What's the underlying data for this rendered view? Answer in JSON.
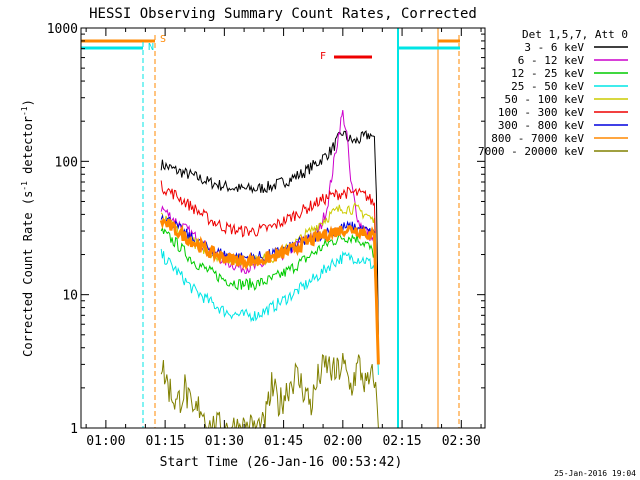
{
  "chart_data": {
    "type": "line",
    "title": "HESSI Observing Summary Count Rates, Corrected",
    "xlabel": "Start Time (26-Jan-16 00:53:42)",
    "ylabel": "Corrected Count Rate (s⁻¹ detector⁻¹)",
    "ylabel_main": "Corrected Count Rate (s",
    "ylabel_sup1": "-1",
    "ylabel_mid": " detector",
    "ylabel_sup2": "-1",
    "ylabel_end": ")",
    "timestamp": "25-Jan-2016 19:04",
    "y_scale": "log",
    "ylim": [
      1,
      1000
    ],
    "xlim_minutes": [
      53.7,
      156
    ],
    "x_ticks": [
      {
        "minutes": 60,
        "label": "01:00"
      },
      {
        "minutes": 75,
        "label": "01:15"
      },
      {
        "minutes": 90,
        "label": "01:30"
      },
      {
        "minutes": 105,
        "label": "01:45"
      },
      {
        "minutes": 120,
        "label": "02:00"
      },
      {
        "minutes": 135,
        "label": "02:15"
      },
      {
        "minutes": 150,
        "label": "02:30"
      }
    ],
    "y_ticks": [
      {
        "value": 1,
        "label": "1"
      },
      {
        "value": 10,
        "label": "10"
      },
      {
        "value": 100,
        "label": "100"
      },
      {
        "value": 1000,
        "label": "1000"
      }
    ],
    "legend_header": "Det 1,5,7, Att 0",
    "legend_placement": "right",
    "series": [
      {
        "name": "3 - 6 keV",
        "color": "#000000",
        "points": [
          [
            74,
            95
          ],
          [
            78,
            85
          ],
          [
            82,
            78
          ],
          [
            86,
            70
          ],
          [
            90,
            65
          ],
          [
            94,
            62
          ],
          [
            98,
            62
          ],
          [
            102,
            65
          ],
          [
            106,
            72
          ],
          [
            110,
            82
          ],
          [
            114,
            100
          ],
          [
            117,
            120
          ],
          [
            119,
            150
          ],
          [
            120,
            165
          ],
          [
            121,
            150
          ],
          [
            123,
            140
          ],
          [
            125,
            150
          ],
          [
            127,
            160
          ],
          [
            128,
            140
          ],
          [
            128.5,
            60
          ],
          [
            129,
            5
          ]
        ]
      },
      {
        "name": "6 - 12 keV",
        "color": "#cc00cc",
        "points": [
          [
            74,
            45
          ],
          [
            78,
            35
          ],
          [
            82,
            28
          ],
          [
            86,
            22
          ],
          [
            90,
            18
          ],
          [
            94,
            16
          ],
          [
            98,
            16
          ],
          [
            102,
            18
          ],
          [
            106,
            21
          ],
          [
            110,
            25
          ],
          [
            114,
            30
          ],
          [
            116,
            45
          ],
          [
            118,
            110
          ],
          [
            119.5,
            200
          ],
          [
            120,
            230
          ],
          [
            121,
            160
          ],
          [
            122,
            70
          ],
          [
            124,
            35
          ],
          [
            126,
            30
          ],
          [
            128,
            25
          ],
          [
            128.5,
            10
          ],
          [
            129,
            3
          ]
        ]
      },
      {
        "name": "12 - 25 keV",
        "color": "#00cc00",
        "points": [
          [
            74,
            30
          ],
          [
            78,
            24
          ],
          [
            82,
            18
          ],
          [
            86,
            15
          ],
          [
            90,
            13
          ],
          [
            94,
            12
          ],
          [
            98,
            12
          ],
          [
            102,
            13
          ],
          [
            106,
            15
          ],
          [
            110,
            18
          ],
          [
            114,
            22
          ],
          [
            117,
            25
          ],
          [
            120,
            27
          ],
          [
            123,
            27
          ],
          [
            126,
            24
          ],
          [
            128,
            20
          ],
          [
            128.5,
            10
          ],
          [
            129,
            3
          ]
        ]
      },
      {
        "name": "25 - 50 keV",
        "color": "#00e5e5",
        "points": [
          [
            74,
            20
          ],
          [
            78,
            15
          ],
          [
            82,
            11
          ],
          [
            86,
            9
          ],
          [
            90,
            7.5
          ],
          [
            94,
            7
          ],
          [
            98,
            7
          ],
          [
            102,
            8
          ],
          [
            106,
            9.5
          ],
          [
            110,
            11.5
          ],
          [
            114,
            14
          ],
          [
            117,
            17
          ],
          [
            120,
            19
          ],
          [
            123,
            19
          ],
          [
            126,
            18
          ],
          [
            128,
            16
          ],
          [
            128.5,
            8
          ],
          [
            129,
            2.5
          ]
        ]
      },
      {
        "name": "50 - 100 keV",
        "color": "#cccc00",
        "points": [
          [
            74,
            38
          ],
          [
            78,
            30
          ],
          [
            82,
            25
          ],
          [
            86,
            21
          ],
          [
            90,
            19
          ],
          [
            94,
            18
          ],
          [
            98,
            18
          ],
          [
            102,
            19
          ],
          [
            106,
            22
          ],
          [
            110,
            27
          ],
          [
            114,
            34
          ],
          [
            117,
            40
          ],
          [
            120,
            45
          ],
          [
            123,
            44
          ],
          [
            126,
            40
          ],
          [
            128,
            35
          ],
          [
            128.5,
            12
          ],
          [
            129,
            3
          ]
        ]
      },
      {
        "name": "100 - 300 keV",
        "color": "#ee0000",
        "points": [
          [
            74,
            65
          ],
          [
            78,
            55
          ],
          [
            82,
            45
          ],
          [
            86,
            37
          ],
          [
            90,
            32
          ],
          [
            94,
            30
          ],
          [
            98,
            30
          ],
          [
            102,
            32
          ],
          [
            106,
            37
          ],
          [
            110,
            43
          ],
          [
            114,
            50
          ],
          [
            117,
            55
          ],
          [
            120,
            58
          ],
          [
            123,
            58
          ],
          [
            126,
            55
          ],
          [
            128,
            48
          ],
          [
            128.5,
            15
          ],
          [
            129,
            4
          ]
        ]
      },
      {
        "name": "300 - 800 keV",
        "color": "#0000dd",
        "points": [
          [
            74,
            40
          ],
          [
            78,
            32
          ],
          [
            82,
            26
          ],
          [
            86,
            22
          ],
          [
            90,
            20
          ],
          [
            94,
            19
          ],
          [
            98,
            19
          ],
          [
            102,
            20
          ],
          [
            106,
            22
          ],
          [
            110,
            25
          ],
          [
            114,
            28
          ],
          [
            117,
            30
          ],
          [
            120,
            32
          ],
          [
            123,
            32
          ],
          [
            126,
            30
          ],
          [
            128,
            28
          ],
          [
            128.5,
            10
          ],
          [
            129,
            3
          ]
        ]
      },
      {
        "name": "800 - 7000 keV",
        "color": "#ff8800",
        "points": [
          [
            74,
            36
          ],
          [
            78,
            30
          ],
          [
            82,
            25
          ],
          [
            86,
            21
          ],
          [
            90,
            19
          ],
          [
            94,
            18
          ],
          [
            98,
            18
          ],
          [
            102,
            19
          ],
          [
            106,
            21
          ],
          [
            110,
            24
          ],
          [
            114,
            27
          ],
          [
            117,
            29
          ],
          [
            120,
            31
          ],
          [
            123,
            31
          ],
          [
            126,
            29
          ],
          [
            128,
            27
          ],
          [
            128.5,
            10
          ],
          [
            129,
            3
          ]
        ]
      },
      {
        "name": "7000 - 20000 keV",
        "color": "#808000",
        "points": [
          [
            74,
            3
          ],
          [
            76,
            2
          ],
          [
            78,
            1.5
          ],
          [
            80,
            2
          ],
          [
            82,
            1.2
          ],
          [
            84,
            1.5
          ],
          [
            86,
            1
          ],
          [
            100,
            1
          ],
          [
            102,
            2
          ],
          [
            104,
            1.5
          ],
          [
            106,
            2
          ],
          [
            108,
            2.5
          ],
          [
            110,
            2
          ],
          [
            112,
            1.5
          ],
          [
            114,
            2.5
          ],
          [
            116,
            3
          ],
          [
            118,
            2.5
          ],
          [
            120,
            3
          ],
          [
            122,
            2
          ],
          [
            124,
            3
          ],
          [
            126,
            2
          ],
          [
            128,
            2.5
          ],
          [
            129,
            1
          ]
        ]
      }
    ],
    "markers": [
      {
        "label": "S",
        "color": "#ff8800"
      },
      {
        "label": "N",
        "color": "#00e5e5"
      },
      {
        "label": "F",
        "color": "#ee0000"
      }
    ]
  }
}
